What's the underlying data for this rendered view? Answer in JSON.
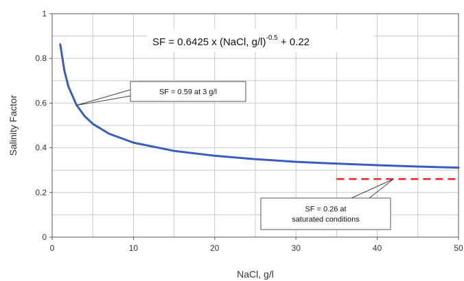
{
  "chart_data": {
    "type": "line",
    "xlabel": "NaCl, g/l",
    "ylabel": "Salinity Factor",
    "xlim": [
      0,
      50
    ],
    "ylim": [
      0,
      1
    ],
    "x_ticks": [
      0,
      10,
      20,
      30,
      40,
      50
    ],
    "y_ticks": [
      0,
      0.2,
      0.4,
      0.6,
      0.8,
      1
    ],
    "x_tick_labels": [
      "0",
      "10",
      "20",
      "30",
      "40",
      "50"
    ],
    "y_tick_labels": [
      "0",
      "0.2",
      "0.4",
      "0.6",
      "0.8",
      "1"
    ],
    "grid": true,
    "equation": {
      "base": "SF = 0.6425 x (NaCl, g/l)",
      "exponent": "-0.5",
      "tail": " + 0.22"
    },
    "series": [
      {
        "color": "#3a5bbf",
        "style": "solid",
        "x": [
          1,
          1.5,
          2,
          3,
          4,
          5,
          7,
          10,
          15,
          20,
          25,
          30,
          35,
          40,
          45,
          50
        ],
        "y": [
          0.863,
          0.745,
          0.674,
          0.591,
          0.541,
          0.507,
          0.463,
          0.423,
          0.386,
          0.364,
          0.349,
          0.337,
          0.329,
          0.322,
          0.316,
          0.311
        ]
      },
      {
        "color": "#ff2020",
        "style": "dashed",
        "x": [
          35,
          50
        ],
        "y": [
          0.26,
          0.26
        ]
      }
    ],
    "annotations": [
      {
        "lines": [
          "SF = 0.59 at 3 g/l"
        ],
        "x": 3,
        "y": 0.59
      },
      {
        "lines": [
          "SF = 0.26 at",
          "saturated conditions"
        ],
        "x": 42,
        "y": 0.26
      }
    ]
  }
}
